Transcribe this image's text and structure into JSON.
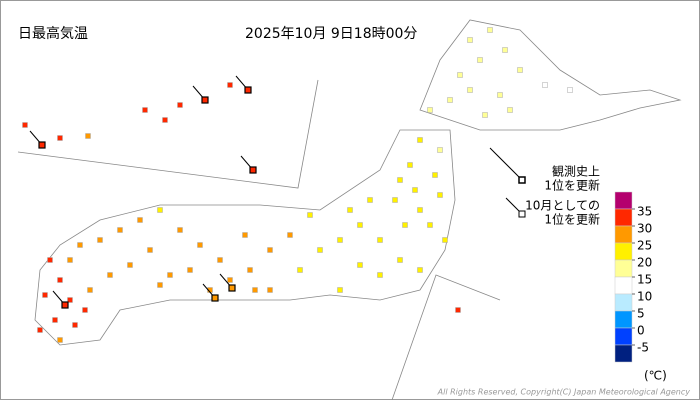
{
  "header": {
    "title": "日最高気温",
    "time": "2025年10月 9日18時00分"
  },
  "legend": {
    "unit": "(℃)",
    "ticks": [
      35,
      30,
      25,
      20,
      15,
      10,
      5,
      0,
      -5
    ],
    "colors": [
      "#b4006e",
      "#ff2800",
      "#ff9900",
      "#fff000",
      "#ffff96",
      "#ffffff",
      "#b9ebff",
      "#0096ff",
      "#0041ff",
      "#002080"
    ]
  },
  "notes": [
    {
      "lines": [
        "観測史上",
        "1位を更新"
      ],
      "record": "all-time"
    },
    {
      "lines": [
        "10月としての",
        "1位を更新"
      ],
      "record": "month"
    }
  ],
  "stations": [
    {
      "value": 17
    },
    {
      "value": 16
    },
    {
      "value": 15
    },
    {
      "value": 17
    },
    {
      "value": 15
    },
    {
      "value": 14
    },
    {
      "value": 14
    },
    {
      "value": 16
    },
    {
      "value": 18
    },
    {
      "value": 17
    },
    {
      "value": 18
    },
    {
      "value": 16
    },
    {
      "value": 15
    },
    {
      "value": 17
    },
    {
      "value": 20
    },
    {
      "value": 19
    },
    {
      "value": 21
    },
    {
      "value": 20
    },
    {
      "value": 21
    },
    {
      "value": 20
    },
    {
      "value": 21
    },
    {
      "value": 22
    },
    {
      "value": 20
    },
    {
      "value": 21
    },
    {
      "value": 22
    },
    {
      "value": 21
    },
    {
      "value": 21
    },
    {
      "value": 20
    },
    {
      "value": 21
    },
    {
      "value": 22
    },
    {
      "value": 21
    },
    {
      "value": 20
    },
    {
      "value": 22
    },
    {
      "value": 23
    },
    {
      "value": 24
    },
    {
      "value": 24
    },
    {
      "value": 23
    },
    {
      "value": 25
    },
    {
      "value": 22
    },
    {
      "value": 23
    },
    {
      "value": 26
    },
    {
      "value": 27
    },
    {
      "value": 28
    },
    {
      "value": 29
    },
    {
      "value": 26
    },
    {
      "value": 25
    },
    {
      "value": 26
    },
    {
      "value": 25
    },
    {
      "value": 28
    },
    {
      "value": 27
    },
    {
      "value": 29,
      "record": "all-time"
    },
    {
      "value": 29,
      "record": "all-time"
    },
    {
      "value": 24
    },
    {
      "value": 25
    },
    {
      "value": 26
    },
    {
      "value": 27
    },
    {
      "value": 27
    },
    {
      "value": 27
    },
    {
      "value": 28
    },
    {
      "value": 28
    },
    {
      "value": 27
    },
    {
      "value": 26
    },
    {
      "value": 28
    },
    {
      "value": 28
    },
    {
      "value": 30
    },
    {
      "value": 31
    },
    {
      "value": 32
    },
    {
      "value": 31
    },
    {
      "value": 31
    },
    {
      "value": 30
    },
    {
      "value": 29
    },
    {
      "value": 30
    },
    {
      "value": 29
    },
    {
      "value": 30
    },
    {
      "value": 31,
      "record": "all-time"
    },
    {
      "value": 30
    },
    {
      "value": 31,
      "record": "all-time"
    },
    {
      "value": 30
    },
    {
      "value": 29
    },
    {
      "value": 31
    },
    {
      "value": 30
    },
    {
      "value": 31
    },
    {
      "value": 32,
      "record": "all-time"
    },
    {
      "value": 31
    },
    {
      "value": 32,
      "record": "all-time"
    },
    {
      "value": 31,
      "record": "all-time"
    },
    {
      "value": 30
    }
  ],
  "copyright": "All Rights Reserved, Copyright(C) Japan Meteorological Agency"
}
